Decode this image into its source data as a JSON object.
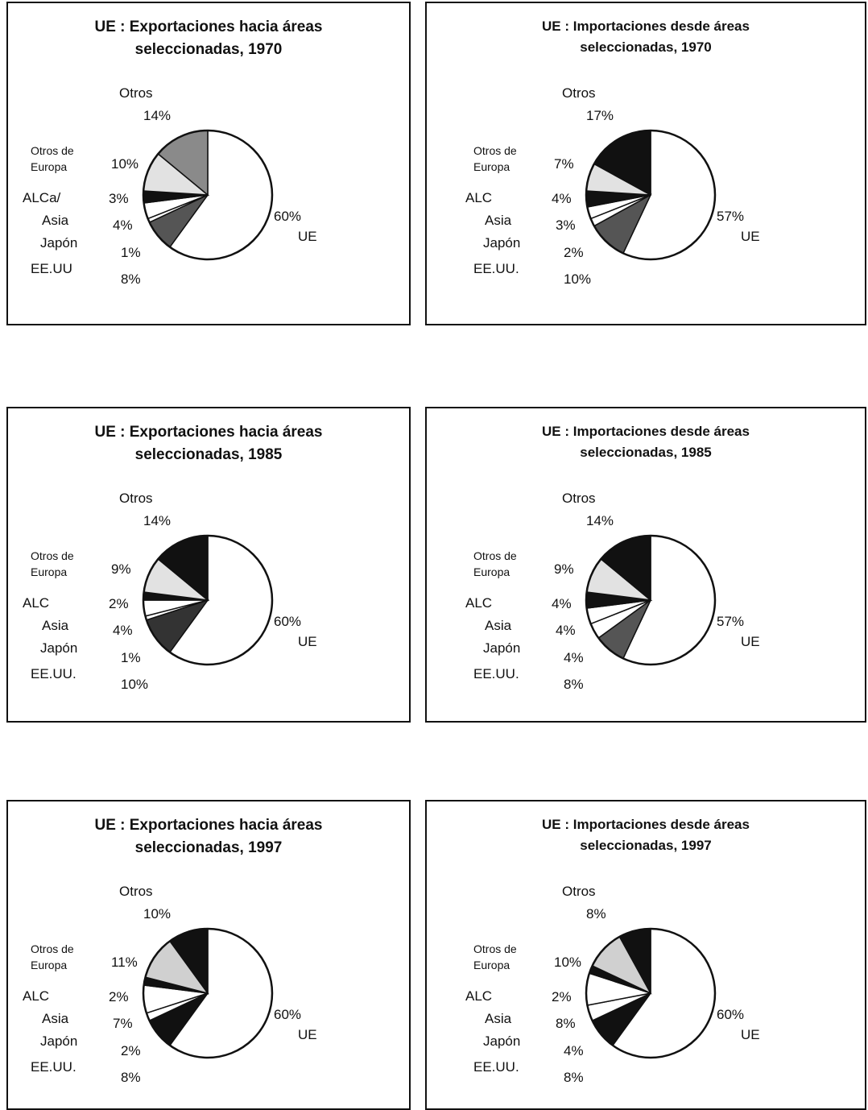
{
  "chart_data": [
    {
      "type": "pie",
      "title": "UE : Exportaciones hacia áreas seleccionadas, 1970",
      "categories": [
        "UE",
        "EE.UU",
        "Japón",
        "Asia",
        "ALCa/",
        "Otros de Europa",
        "Otros"
      ],
      "values": [
        60,
        8,
        1,
        4,
        3,
        10,
        14
      ],
      "value_labels": [
        "60%",
        "8%",
        "1%",
        "4%",
        "3%",
        "10%",
        "14%"
      ],
      "colors": [
        "#ffffff",
        "#555555",
        "#ffffff",
        "#ffffff",
        "#111111",
        "#e2e2e2",
        "#8a8a8a"
      ]
    },
    {
      "type": "pie",
      "title": "UE : Importaciones desde áreas seleccionadas, 1970",
      "categories": [
        "UE",
        "EE.UU.",
        "Japón",
        "Asia",
        "ALC",
        "Otros de Europa",
        "Otros"
      ],
      "values": [
        57,
        10,
        2,
        3,
        4,
        7,
        17
      ],
      "value_labels": [
        "57%",
        "10%",
        "2%",
        "3%",
        "4%",
        "7%",
        "17%"
      ],
      "colors": [
        "#ffffff",
        "#555555",
        "#ffffff",
        "#ffffff",
        "#111111",
        "#e2e2e2",
        "#111111"
      ]
    },
    {
      "type": "pie",
      "title": "UE : Exportaciones hacia áreas seleccionadas, 1985",
      "categories": [
        "UE",
        "EE.UU.",
        "Japón",
        "Asia",
        "ALC",
        "Otros de Europa",
        "Otros"
      ],
      "values": [
        60,
        10,
        1,
        4,
        2,
        9,
        14
      ],
      "value_labels": [
        "60%",
        "10%",
        "1%",
        "4%",
        "2%",
        "9%",
        "14%"
      ],
      "colors": [
        "#ffffff",
        "#333333",
        "#ffffff",
        "#ffffff",
        "#111111",
        "#e2e2e2",
        "#111111"
      ]
    },
    {
      "type": "pie",
      "title": "UE : Importaciones desde áreas seleccionadas, 1985",
      "categories": [
        "UE",
        "EE.UU.",
        "Japón",
        "Asia",
        "ALC",
        "Otros de Europa",
        "Otros"
      ],
      "values": [
        57,
        8,
        4,
        4,
        4,
        9,
        14
      ],
      "value_labels": [
        "57%",
        "8%",
        "4%",
        "4%",
        "4%",
        "9%",
        "14%"
      ],
      "colors": [
        "#ffffff",
        "#555555",
        "#ffffff",
        "#ffffff",
        "#111111",
        "#e2e2e2",
        "#111111"
      ]
    },
    {
      "type": "pie",
      "title": "UE : Exportaciones hacia áreas seleccionadas, 1997",
      "categories": [
        "UE",
        "EE.UU.",
        "Japón",
        "Asia",
        "ALC",
        "Otros de Europa",
        "Otros"
      ],
      "values": [
        60,
        8,
        2,
        7,
        2,
        11,
        10
      ],
      "value_labels": [
        "60%",
        "8%",
        "2%",
        "7%",
        "2%",
        "11%",
        "10%"
      ],
      "colors": [
        "#ffffff",
        "#111111",
        "#ffffff",
        "#ffffff",
        "#111111",
        "#d0d0d0",
        "#111111"
      ]
    },
    {
      "type": "pie",
      "title": "UE : Importaciones desde áreas seleccionadas, 1997",
      "categories": [
        "UE",
        "EE.UU.",
        "Japón",
        "Asia",
        "ALC",
        "Otros de Europa",
        "Otros"
      ],
      "values": [
        60,
        8,
        4,
        8,
        2,
        10,
        8
      ],
      "value_labels": [
        "60%",
        "8%",
        "4%",
        "8%",
        "2%",
        "10%",
        "8%"
      ],
      "colors": [
        "#ffffff",
        "#111111",
        "#ffffff",
        "#ffffff",
        "#111111",
        "#d0d0d0",
        "#111111"
      ]
    }
  ]
}
